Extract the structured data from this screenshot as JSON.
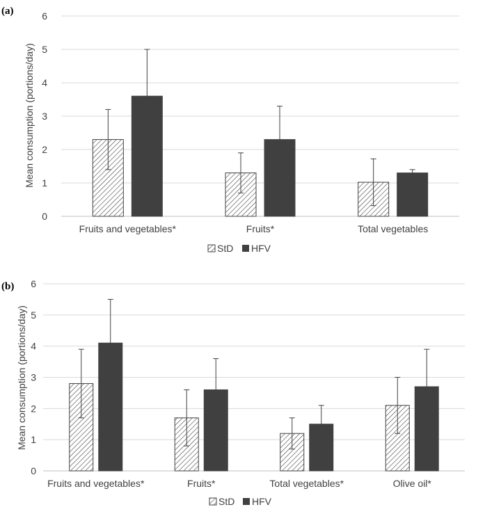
{
  "chart_data": [
    {
      "panel": "(a)",
      "type": "bar",
      "ylabel": "Mean consumption  (portions/day)",
      "ylim": [
        0,
        6
      ],
      "yticks": [
        0,
        1,
        2,
        3,
        4,
        5,
        6
      ],
      "categories": [
        "Fruits and vegetables*",
        "Fruits*",
        "Total vegetables"
      ],
      "series": [
        {
          "name": "StD",
          "pattern": "hatched",
          "values": [
            2.3,
            1.3,
            1.02
          ],
          "error": [
            0.9,
            0.6,
            0.7
          ]
        },
        {
          "name": "HFV",
          "pattern": "solid",
          "values": [
            3.6,
            2.3,
            1.3
          ],
          "error": [
            1.4,
            1.0,
            0.1
          ]
        }
      ],
      "grid": true,
      "legend": "bottom"
    },
    {
      "panel": "(b)",
      "type": "bar",
      "ylabel": "Mean consumption  (portions/day)",
      "ylim": [
        0,
        6
      ],
      "yticks": [
        0,
        1,
        2,
        3,
        4,
        5,
        6
      ],
      "categories": [
        "Fruits and vegetables*",
        "Fruits*",
        "Total vegetables*",
        "Olive oil*"
      ],
      "series": [
        {
          "name": "StD",
          "pattern": "hatched",
          "values": [
            2.8,
            1.7,
            1.2,
            2.1
          ],
          "error": [
            1.1,
            0.9,
            0.5,
            0.9
          ]
        },
        {
          "name": "HFV",
          "pattern": "solid",
          "values": [
            4.1,
            2.6,
            1.5,
            2.7
          ],
          "error": [
            1.4,
            1.0,
            0.6,
            1.2
          ]
        }
      ],
      "grid": true,
      "legend": "bottom"
    }
  ],
  "colors": {
    "hfv_fill": "#404040",
    "std_fill": "#ffffff",
    "grid": "#d9d9d9",
    "text": "#404040"
  }
}
